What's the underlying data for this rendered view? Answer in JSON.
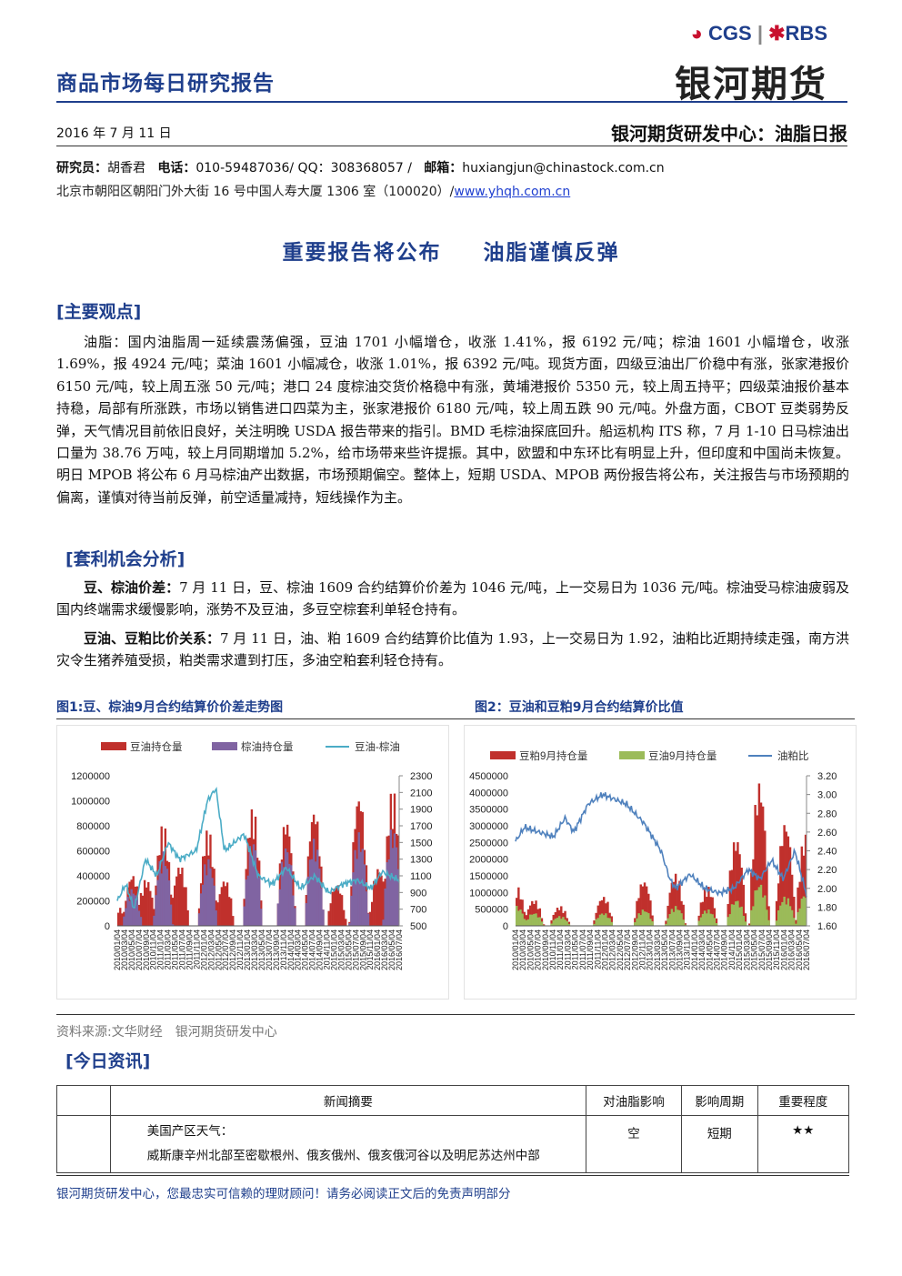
{
  "header": {
    "report_type": "商品市场每日研究报告",
    "logo_cgs": "CGS",
    "logo_rbs": "RBS",
    "logo_cn": "银河期货",
    "date": "2016 年 7 月 11 日",
    "dept": "银河期货研发中心：油脂日报"
  },
  "contact": {
    "researcher_label": "研究员：",
    "researcher": "胡香君",
    "phone_label": "电话：",
    "phone": "010-59487036/ QQ：308368057 /",
    "email_label": "邮箱：",
    "email": "huxiangjun@chinastock.com.cn",
    "address": "北京市朝阳区朝阳门外大街 16 号中国人寿大厦 1306 室（100020）/",
    "website": "www.yhqh.com.cn"
  },
  "headline": {
    "part1": "重要报告将公布",
    "part2": "油脂谨慎反弹"
  },
  "sections": {
    "main_view": "[主要观点]",
    "arbitrage": "[套利机会分析]",
    "news": "[今日资讯]"
  },
  "main_view_text": "油脂：国内油脂周一延续震荡偏强，豆油 1701 小幅增仓，收涨 1.41%，报 6192 元/吨；棕油 1601 小幅增仓，收涨 1.69%，报 4924 元/吨；菜油 1601 小幅减仓，收涨 1.01%，报 6392 元/吨。现货方面，四级豆油出厂价稳中有涨，张家港报价 6150 元/吨，较上周五涨 50 元/吨；港口 24 度棕油交货价格稳中有涨，黄埔港报价 5350 元，较上周五持平；四级菜油报价基本持稳，局部有所涨跌，市场以销售进口四菜为主，张家港报价 6180 元/吨，较上周五跌 90 元/吨。外盘方面，CBOT 豆类弱势反弹，天气情况目前依旧良好，关注明晚 USDA 报告带来的指引。BMD 毛棕油探底回升。船运机构 ITS 称，7 月 1-10 日马棕油出口量为 38.76 万吨，较上月同期增加 5.2%，给市场带来些许提振。其中，欧盟和中东环比有明显上升，但印度和中国尚未恢复。明日 MPOB 将公布 6 月马棕油产出数据，市场预期偏空。整体上，短期 USDA、MPOB 两份报告将公布，关注报告与市场预期的偏离，谨慎对待当前反弹，前空适量减持，短线操作为主。",
  "arbitrage": {
    "p1_label": "豆、棕油价差：",
    "p1_text": "7 月 11 日，豆、棕油 1609 合约结算价价差为 1046 元/吨，上一交易日为 1036 元/吨。棕油受马棕油疲弱及国内终端需求缓慢影响，涨势不及豆油，多豆空棕套利单轻仓持有。",
    "p2_label": "豆油、豆粕比价关系：",
    "p2_text": "7 月 11 日，油、粕 1609 合约结算价比值为 1.93，上一交易日为 1.92，油粕比近期持续走强，南方洪灾令生猪养殖受损，粕类需求遭到打压，多油空粕套利轻仓持有。"
  },
  "figures": {
    "fig1_title": "图1:豆、棕油9月合约结算价价差走势图",
    "fig2_title": "图2：豆油和豆粕9月合约结算价比值",
    "source": "资料来源:文华财经　银河期货研发中心"
  },
  "chart_data": [
    {
      "type": "bar+line",
      "series": [
        {
          "name": "豆油持仓量",
          "color": "#c0302c",
          "axis": "left"
        },
        {
          "name": "棕油持仓量",
          "color": "#8064a2",
          "axis": "left"
        },
        {
          "name": "豆油-棕油",
          "color": "#4bacc6",
          "axis": "right",
          "kind": "line"
        }
      ],
      "ylim_left": [
        0,
        1200000
      ],
      "yticks_left": [
        "1200000",
        "1000000",
        "800000",
        "600000",
        "400000",
        "200000",
        "0"
      ],
      "ylim_right": [
        500,
        2300
      ],
      "yticks_right": [
        "2300",
        "2100",
        "1900",
        "1700",
        "1500",
        "1300",
        "1100",
        "900",
        "700",
        "500"
      ],
      "x_range": [
        "2010/01/04",
        "2016/07/04"
      ],
      "xticks": [
        "2010/01/04",
        "2010/03/04",
        "2010/05/04",
        "2010/07/04",
        "2010/09/04",
        "2010/11/04",
        "2011/01/04",
        "2011/03/04",
        "2011/05/04",
        "2011/07/04",
        "2011/09/04",
        "2011/11/04",
        "2012/01/04",
        "2012/03/04",
        "2012/05/04",
        "2012/07/04",
        "2012/09/04",
        "2012/11/04",
        "2013/01/04",
        "2013/03/04",
        "2013/05/04",
        "2013/07/04",
        "2013/09/04",
        "2013/11/04",
        "2014/01/04",
        "2014/03/04",
        "2014/05/04",
        "2014/07/04",
        "2014/09/04",
        "2014/11/04",
        "2015/01/04",
        "2015/03/04",
        "2015/05/04",
        "2015/07/04",
        "2015/09/04",
        "2015/11/04",
        "2016/01/04",
        "2016/03/04",
        "2016/05/04",
        "2016/07/04"
      ],
      "bar_peaks_soy": [
        [
          0.0,
          150000
        ],
        [
          0.05,
          420000
        ],
        [
          0.1,
          380000
        ],
        [
          0.16,
          820000
        ],
        [
          0.22,
          500000
        ],
        [
          0.32,
          780000
        ],
        [
          0.38,
          380000
        ],
        [
          0.48,
          950000
        ],
        [
          0.6,
          870000
        ],
        [
          0.7,
          960000
        ],
        [
          0.78,
          350000
        ],
        [
          0.86,
          1080000
        ],
        [
          0.93,
          480000
        ],
        [
          0.98,
          1100000
        ]
      ],
      "bar_peaks_palm": [
        [
          0.05,
          300000
        ],
        [
          0.16,
          600000
        ],
        [
          0.32,
          550000
        ],
        [
          0.48,
          700000
        ],
        [
          0.6,
          650000
        ],
        [
          0.7,
          700000
        ],
        [
          0.86,
          750000
        ],
        [
          0.98,
          800000
        ]
      ],
      "spread_line": [
        [
          0.0,
          800
        ],
        [
          0.03,
          1000
        ],
        [
          0.06,
          700
        ],
        [
          0.1,
          1300
        ],
        [
          0.14,
          1100
        ],
        [
          0.18,
          1500
        ],
        [
          0.22,
          1300
        ],
        [
          0.28,
          1400
        ],
        [
          0.32,
          2000
        ],
        [
          0.35,
          2150
        ],
        [
          0.38,
          1400
        ],
        [
          0.45,
          1600
        ],
        [
          0.5,
          1100
        ],
        [
          0.55,
          1000
        ],
        [
          0.6,
          1200
        ],
        [
          0.65,
          950
        ],
        [
          0.7,
          1100
        ],
        [
          0.75,
          900
        ],
        [
          0.8,
          1000
        ],
        [
          0.85,
          1050
        ],
        [
          0.9,
          950
        ],
        [
          0.94,
          1150
        ],
        [
          1.0,
          1046
        ]
      ]
    },
    {
      "type": "bar+line",
      "series": [
        {
          "name": "豆粕9月持仓量",
          "color": "#c0302c",
          "axis": "left"
        },
        {
          "name": "豆油9月持仓量",
          "color": "#9bbb59",
          "axis": "left"
        },
        {
          "name": "油粕比",
          "color": "#4f81bd",
          "axis": "right",
          "kind": "line"
        }
      ],
      "ylim_left": [
        0,
        4500000
      ],
      "yticks_left": [
        "4500000",
        "4000000",
        "3500000",
        "3000000",
        "2500000",
        "2000000",
        "1500000",
        "1000000",
        "500000",
        "0"
      ],
      "ylim_right": [
        1.6,
        3.2
      ],
      "yticks_right": [
        "3.20",
        "3.00",
        "2.80",
        "2.60",
        "2.40",
        "2.20",
        "2.00",
        "1.80",
        "1.60"
      ],
      "x_range": [
        "2010/01/04",
        "2016/07/04"
      ],
      "xticks": [
        "2010/01/04",
        "2010/03/04",
        "2010/05/04",
        "2010/07/04",
        "2010/09/04",
        "2010/11/04",
        "2011/01/04",
        "2011/03/04",
        "2011/05/04",
        "2011/07/04",
        "2011/09/04",
        "2011/11/04",
        "2012/01/04",
        "2012/03/04",
        "2012/05/04",
        "2012/07/04",
        "2012/09/04",
        "2012/11/04",
        "2013/01/04",
        "2013/03/04",
        "2013/05/04",
        "2013/07/04",
        "2013/09/04",
        "2013/11/04",
        "2014/01/04",
        "2014/03/04",
        "2014/05/04",
        "2014/07/04",
        "2014/09/04",
        "2014/11/04",
        "2015/01/04",
        "2015/03/04",
        "2015/05/04",
        "2015/07/04",
        "2015/09/04",
        "2015/11/04",
        "2016/01/04",
        "2016/03/04",
        "2016/05/04",
        "2016/07/04"
      ],
      "bar_peaks_meal": [
        [
          0.0,
          1200000
        ],
        [
          0.06,
          800000
        ],
        [
          0.15,
          600000
        ],
        [
          0.3,
          900000
        ],
        [
          0.44,
          1400000
        ],
        [
          0.55,
          1600000
        ],
        [
          0.66,
          1200000
        ],
        [
          0.76,
          2700000
        ],
        [
          0.84,
          4400000
        ],
        [
          0.93,
          3200000
        ],
        [
          1.0,
          2800000
        ]
      ],
      "bar_peaks_oil": [
        [
          0.0,
          600000
        ],
        [
          0.06,
          400000
        ],
        [
          0.15,
          300000
        ],
        [
          0.3,
          400000
        ],
        [
          0.44,
          500000
        ],
        [
          0.55,
          600000
        ],
        [
          0.66,
          500000
        ],
        [
          0.76,
          800000
        ],
        [
          0.84,
          1300000
        ],
        [
          0.93,
          900000
        ],
        [
          1.0,
          1000000
        ]
      ],
      "ratio_line": [
        [
          0.0,
          2.5
        ],
        [
          0.03,
          2.65
        ],
        [
          0.08,
          2.6
        ],
        [
          0.13,
          2.55
        ],
        [
          0.17,
          2.75
        ],
        [
          0.2,
          2.6
        ],
        [
          0.25,
          2.9
        ],
        [
          0.3,
          3.0
        ],
        [
          0.34,
          2.95
        ],
        [
          0.38,
          2.9
        ],
        [
          0.44,
          2.7
        ],
        [
          0.47,
          2.55
        ],
        [
          0.5,
          2.4
        ],
        [
          0.53,
          2.1
        ],
        [
          0.55,
          2.0
        ],
        [
          0.6,
          2.15
        ],
        [
          0.65,
          2.0
        ],
        [
          0.7,
          1.95
        ],
        [
          0.75,
          2.0
        ],
        [
          0.8,
          2.2
        ],
        [
          0.84,
          2.1
        ],
        [
          0.88,
          2.3
        ],
        [
          0.92,
          2.1
        ],
        [
          0.96,
          2.4
        ],
        [
          1.0,
          1.93
        ]
      ]
    }
  ],
  "news_table": {
    "headers": [
      "",
      "新闻摘要",
      "对油脂影响",
      "影响周期",
      "重要程度"
    ],
    "row1": {
      "title": "美国产区天气：",
      "detail": "威斯康辛州北部至密歇根州、俄亥俄州、俄亥俄河谷以及明尼苏达州中部",
      "impact": "空",
      "period": "短期",
      "importance": "★★"
    }
  },
  "footer": "银河期货研发中心，您最忠实可信赖的理财顾问！请务必阅读正文后的免责声明部分"
}
